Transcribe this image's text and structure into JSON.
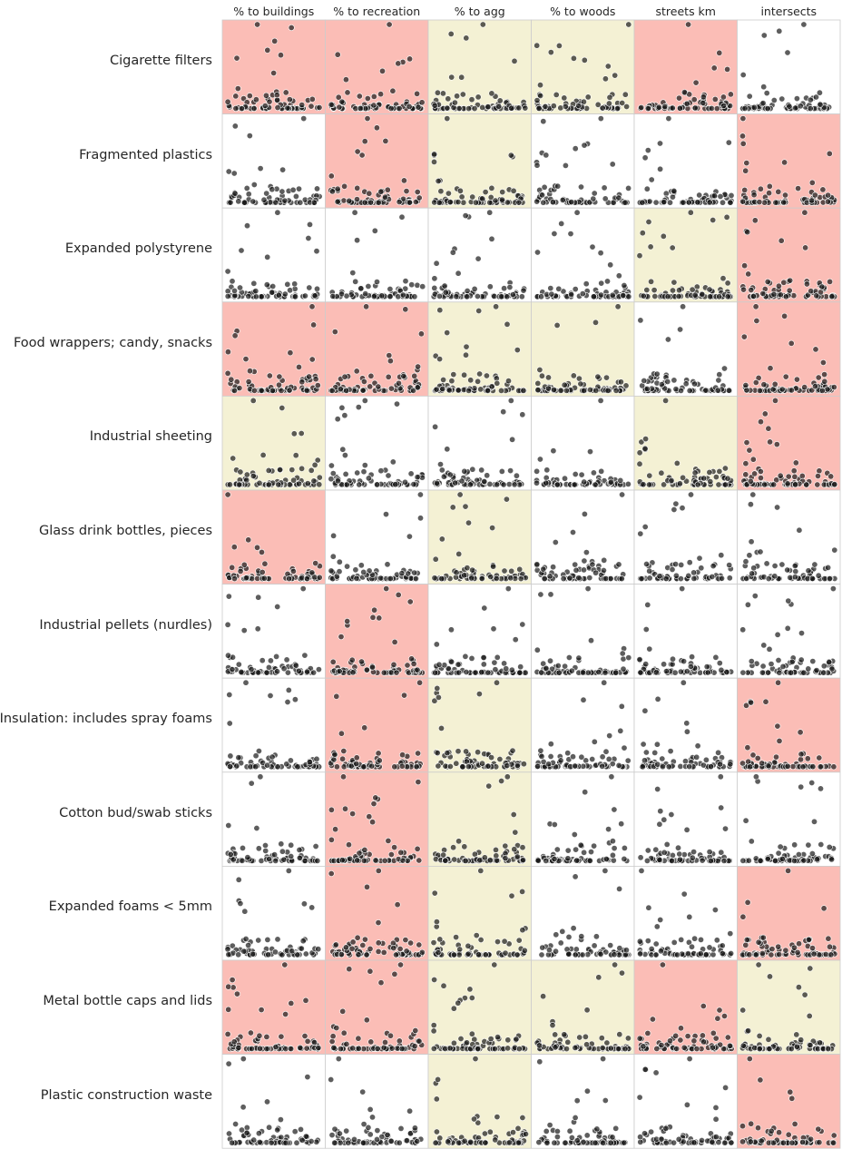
{
  "chart_data": {
    "type": "scatter",
    "layout": "small-multiples grid: rows = litter objects, columns = land-use features",
    "columns": [
      "% to buildings",
      "% to recreation",
      "% to agg",
      "% to woods",
      "streets km",
      "intersects"
    ],
    "rows": [
      "Cigarette filters",
      "Fragmented plastics",
      "Expanded polystyrene",
      "Food wrappers; candy, snacks",
      "Industrial sheeting",
      "Glass drink bottles, pieces",
      "Industrial pellets (nurdles)",
      "Insulation: includes spray foams",
      "Cotton bud/swab sticks",
      "Expanded foams < 5mm",
      "Metal bottle caps and lids",
      "Plastic construction waste"
    ],
    "cell_colors": {
      "positive": "#fbbdb6",
      "negative": "#f4f1d4",
      "none": "#ffffff"
    },
    "cell_correlation": [
      [
        "positive",
        "positive",
        "negative",
        "negative",
        "positive",
        "none"
      ],
      [
        "none",
        "positive",
        "negative",
        "none",
        "none",
        "positive"
      ],
      [
        "none",
        "none",
        "none",
        "none",
        "negative",
        "positive"
      ],
      [
        "positive",
        "positive",
        "negative",
        "negative",
        "none",
        "positive"
      ],
      [
        "negative",
        "none",
        "none",
        "none",
        "negative",
        "positive"
      ],
      [
        "positive",
        "none",
        "negative",
        "none",
        "none",
        "none"
      ],
      [
        "none",
        "positive",
        "none",
        "none",
        "none",
        "none"
      ],
      [
        "none",
        "positive",
        "negative",
        "none",
        "none",
        "positive"
      ],
      [
        "none",
        "positive",
        "negative",
        "none",
        "none",
        "none"
      ],
      [
        "none",
        "positive",
        "negative",
        "none",
        "none",
        "positive"
      ],
      [
        "positive",
        "positive",
        "negative",
        "negative",
        "positive",
        "negative"
      ],
      [
        "none",
        "none",
        "negative",
        "none",
        "none",
        "positive"
      ]
    ],
    "marker_color": "#1a1a1a",
    "marker_edge": "#ffffff",
    "grid": false,
    "axis_ticks": false
  }
}
